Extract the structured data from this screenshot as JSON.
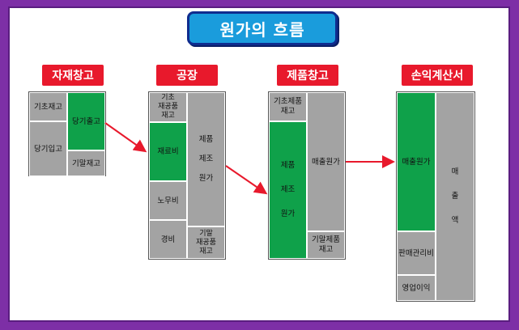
{
  "title": "원가의 흐름",
  "sections": {
    "materials": {
      "header": "자재창고",
      "beginning": "기초재고",
      "purchases": "당기입고",
      "issued": "당기출고",
      "ending": "기말재고"
    },
    "factory": {
      "header": "공장",
      "beginning_wip": "기초\n재공품\n재고",
      "materials": "재료비",
      "labor": "노무비",
      "overhead": "경비",
      "manufactured": "제품\n제조\n원가",
      "ending_wip": "기말\n재공품\n재고"
    },
    "finished_goods": {
      "header": "제품창고",
      "beginning": "기초제품\n재고",
      "manufactured": "제품\n제조\n원가",
      "cogs": "매출원가",
      "ending": "기말제품\n재고"
    },
    "income_statement": {
      "header": "손익계산서",
      "cogs": "매출원가",
      "sga": "판매관리비",
      "operating_income": "영업이익",
      "sales": "매\n출\n액"
    }
  },
  "colors": {
    "background": "#7d2fa6",
    "title_fill": "#1a9cdc",
    "header_fill": "#e8192c",
    "green": "#0fa14a",
    "gray": "#a3a3a3",
    "arrow": "#e8192c"
  }
}
